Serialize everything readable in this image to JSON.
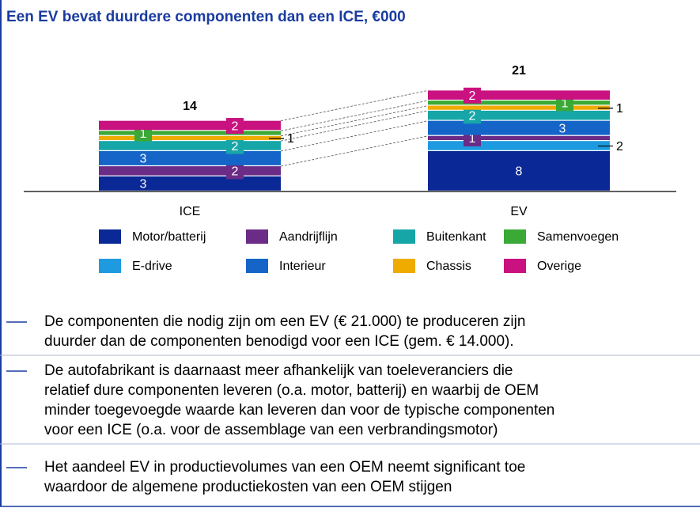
{
  "chart_data": {
    "type": "stacked_bar",
    "title": "Een EV bevat duurdere componenten dan een ICE, €000",
    "categories": [
      "ICE",
      "EV"
    ],
    "totals": [
      14,
      21
    ],
    "ylim": [
      0,
      21
    ],
    "series": [
      {
        "name": "Motor/batterij",
        "color": "#0a2896",
        "values": [
          3,
          8
        ]
      },
      {
        "name": "E-drive",
        "color": "#1e9be0",
        "values": [
          null,
          2
        ]
      },
      {
        "name": "Aandrijflijn",
        "color": "#6a2c87",
        "values": [
          2,
          1
        ]
      },
      {
        "name": "Interieur",
        "color": "#1565c8",
        "values": [
          3,
          3
        ]
      },
      {
        "name": "Buitenkant",
        "color": "#17a6a8",
        "values": [
          2,
          2
        ]
      },
      {
        "name": "Chassis",
        "color": "#f0ab00",
        "values": [
          1,
          1
        ]
      },
      {
        "name": "Samenvoegen",
        "color": "#3aa935",
        "values": [
          1,
          1
        ]
      },
      {
        "name": "Overige",
        "color": "#c9117f",
        "values": [
          2,
          2
        ]
      }
    ]
  },
  "bullets": [
    [
      "De componenten die nodig zijn om een EV (€ 21.000) te produceren zijn",
      "duurder dan de componenten benodigd voor een ICE (gem. € 14.000)."
    ],
    [
      "De autofabrikant is daarnaast meer afhankelijk van toeleveranciers die",
      "relatief dure componenten leveren (o.a. motor, batterij) en waarbij de OEM",
      "minder toegevoegde waarde kan leveren dan voor de typische componenten",
      "voor een ICE (o.a. voor de assemblage van een verbrandingsmotor)"
    ],
    [
      "Het aandeel EV in productievolumes van een OEM neemt significant toe",
      "waardoor de algemene productiekosten van een OEM stijgen"
    ]
  ]
}
